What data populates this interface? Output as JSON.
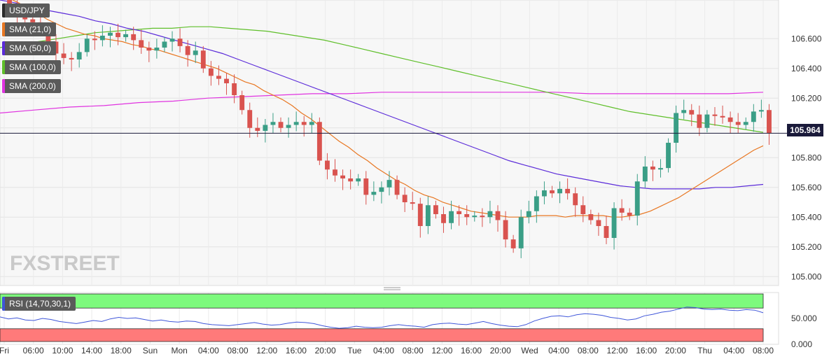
{
  "chart_data": {
    "type": "candlestick",
    "symbol": "USD/JPY",
    "current_price": "105.964",
    "y_ticks": [
      "106.600",
      "106.400",
      "106.200",
      "106.000",
      "105.800",
      "105.600",
      "105.400",
      "105.200",
      "105.000"
    ],
    "ylim": [
      104.94,
      106.86
    ],
    "x_ticks": [
      "Fri",
      "06:00",
      "10:00",
      "14:00",
      "18:00",
      "Sun",
      "Mon",
      "04:00",
      "08:00",
      "12:00",
      "16:00",
      "20:00",
      "Tue",
      "04:00",
      "08:00",
      "12:00",
      "16:00",
      "20:00",
      "Wed",
      "04:00",
      "08:00",
      "12:00",
      "16:00",
      "20:00",
      "Thu",
      "04:00",
      "08:00"
    ],
    "legend": [
      {
        "label": "USD/JPY",
        "color": "#2a2a2a"
      },
      {
        "label": "SMA (21,0)",
        "color": "#e87722"
      },
      {
        "label": "SMA (50,0)",
        "color": "#5b2bd9"
      },
      {
        "label": "SMA (100,0)",
        "color": "#5fbf2a"
      },
      {
        "label": "SMA (200,0)",
        "color": "#e033e0"
      }
    ],
    "closes": [
      106.82,
      106.75,
      106.73,
      106.71,
      106.68,
      106.58,
      106.5,
      106.47,
      106.46,
      106.51,
      106.6,
      106.59,
      106.62,
      106.64,
      106.61,
      106.63,
      106.59,
      106.54,
      106.52,
      106.54,
      106.58,
      106.6,
      106.55,
      106.49,
      106.52,
      106.4,
      106.35,
      106.33,
      106.3,
      106.22,
      106.12,
      106.0,
      105.98,
      106.02,
      106.04,
      106.0,
      106.02,
      106.04,
      106.02,
      106.04,
      105.78,
      105.72,
      105.68,
      105.66,
      105.64,
      105.66,
      105.55,
      105.57,
      105.6,
      105.65,
      105.55,
      105.5,
      105.49,
      105.34,
      105.48,
      105.42,
      105.36,
      105.44,
      105.42,
      105.4,
      105.41,
      105.4,
      105.44,
      105.38,
      105.25,
      105.19,
      105.4,
      105.44,
      105.54,
      105.58,
      105.56,
      105.59,
      105.56,
      105.48,
      105.42,
      105.38,
      105.34,
      105.26,
      105.46,
      105.43,
      105.41,
      105.64,
      105.74,
      105.72,
      105.73,
      105.9,
      106.1,
      106.12,
      106.09,
      106.0,
      106.09,
      106.08,
      106.07,
      106.04,
      106.02,
      106.04,
      106.11,
      106.12,
      105.964
    ],
    "sma21": [
      106.9,
      106.87,
      106.84,
      106.8,
      106.77,
      106.73,
      106.7,
      106.67,
      106.65,
      106.63,
      106.62,
      106.6,
      106.59,
      106.58,
      106.56,
      106.55,
      106.53,
      106.52,
      106.5,
      106.48,
      106.46,
      106.44,
      106.42,
      106.4,
      106.37,
      106.34,
      106.31,
      106.29,
      106.25,
      106.22,
      106.19,
      106.15,
      106.1,
      106.06,
      106.01,
      105.96,
      105.91,
      105.87,
      105.82,
      105.78,
      105.73,
      105.69,
      105.65,
      105.62,
      105.58,
      105.55,
      105.53,
      105.5,
      105.48,
      105.46,
      105.44,
      105.43,
      105.42,
      105.41,
      105.4,
      105.4,
      105.4,
      105.41,
      105.41,
      105.41,
      105.4,
      105.41,
      105.41,
      105.41,
      105.41,
      105.4,
      105.4,
      105.41,
      105.42,
      105.44,
      105.47,
      105.5,
      105.53,
      105.57,
      105.61,
      105.65,
      105.69,
      105.73,
      105.77,
      105.81,
      105.85,
      105.88
    ],
    "sma50": [
      106.86,
      106.84,
      106.81,
      106.79,
      106.77,
      106.75,
      106.72,
      106.7,
      106.67,
      106.65,
      106.62,
      106.59,
      106.56,
      106.53,
      106.5,
      106.46,
      106.42,
      106.38,
      106.34,
      106.3,
      106.26,
      106.22,
      106.18,
      106.14,
      106.1,
      106.06,
      106.02,
      105.98,
      105.94,
      105.9,
      105.86,
      105.82,
      105.78,
      105.75,
      105.72,
      105.69,
      105.67,
      105.65,
      105.63,
      105.61,
      105.6,
      105.59,
      105.59,
      105.59,
      105.59,
      105.6,
      105.6,
      105.61,
      105.62
    ],
    "sma100": [
      106.54,
      106.56,
      106.58,
      106.6,
      106.62,
      106.64,
      106.65,
      106.66,
      106.67,
      106.67,
      106.68,
      106.68,
      106.67,
      106.66,
      106.65,
      106.63,
      106.61,
      106.59,
      106.56,
      106.53,
      106.5,
      106.47,
      106.44,
      106.41,
      106.38,
      106.35,
      106.32,
      106.29,
      106.26,
      106.23,
      106.2,
      106.17,
      106.14,
      106.11,
      106.09,
      106.07,
      106.05,
      106.03,
      106.01,
      105.99,
      105.97
    ],
    "sma200": [
      106.1,
      106.12,
      106.14,
      106.15,
      106.17,
      106.18,
      106.2,
      106.21,
      106.22,
      106.23,
      106.23,
      106.24,
      106.24,
      106.24,
      106.24,
      106.24,
      106.24,
      106.23,
      106.23,
      106.23,
      106.23,
      106.23,
      106.24
    ],
    "rsi": {
      "label": "RSI (14,70,30,1)",
      "ticks": [
        "50.000",
        "0.000"
      ],
      "overbought": 70,
      "oversold": 30,
      "values": [
        53,
        49,
        51,
        47,
        46,
        50,
        48,
        44,
        42,
        40,
        43,
        46,
        44,
        49,
        52,
        50,
        51,
        48,
        45,
        47,
        44,
        43,
        45,
        44,
        40,
        38,
        37,
        36,
        38,
        40,
        42,
        39,
        37,
        38,
        41,
        43,
        42,
        40,
        36,
        33,
        31,
        32,
        35,
        33,
        32,
        33,
        36,
        38,
        36,
        35,
        33,
        38,
        40,
        41,
        39,
        38,
        41,
        44,
        40,
        37,
        35,
        34,
        38,
        45,
        50,
        54,
        55,
        53,
        57,
        59,
        58,
        56,
        52,
        50,
        47,
        49,
        55,
        58,
        62,
        64,
        68,
        72,
        71,
        68,
        67,
        68,
        66,
        65,
        67,
        66,
        61
      ]
    },
    "watermark": "FXSTREET"
  }
}
